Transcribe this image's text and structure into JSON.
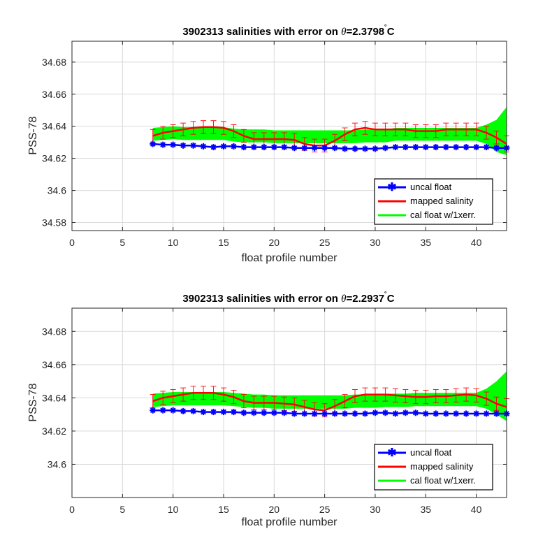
{
  "colors": {
    "uncal": "#0000ff",
    "mapped": "#ff0000",
    "calband": "#00ff00",
    "grid": "#d9d9d9",
    "axis": "#262626",
    "background": "#ffffff"
  },
  "chart_data": [
    {
      "type": "line",
      "title": "3902313 salinities with error on θ=2.3798˚C",
      "title_parts": {
        "prefix": "3902313 salinities with error on ",
        "theta": "θ",
        "value": "=2.3798",
        "degree": "˚",
        "unit": "C"
      },
      "xlabel": "float profile number",
      "ylabel": "PSS-78",
      "xlim": [
        0,
        43
      ],
      "ylim": [
        34.575,
        34.693
      ],
      "xticks": [
        0,
        5,
        10,
        15,
        20,
        25,
        30,
        35,
        40
      ],
      "yticks": [
        34.58,
        34.6,
        34.62,
        34.64,
        34.66,
        34.68
      ],
      "ytick_labels": [
        "34.58",
        "34.6",
        "34.62",
        "34.64",
        "34.66",
        "34.68"
      ],
      "grid": true,
      "legend_position": "bottom-right",
      "x": [
        8,
        9,
        10,
        11,
        12,
        13,
        14,
        15,
        16,
        17,
        18,
        19,
        20,
        21,
        22,
        23,
        24,
        25,
        26,
        27,
        28,
        29,
        30,
        31,
        32,
        33,
        34,
        35,
        36,
        37,
        38,
        39,
        40,
        41,
        42,
        43
      ],
      "series": [
        {
          "name": "uncal float",
          "color": "#0000ff",
          "marker": "asterisk",
          "values": [
            34.629,
            34.6285,
            34.6285,
            34.628,
            34.628,
            34.6275,
            34.627,
            34.6275,
            34.6275,
            34.627,
            34.627,
            34.627,
            34.627,
            34.627,
            34.6265,
            34.6265,
            34.6265,
            34.6265,
            34.6265,
            34.626,
            34.626,
            34.626,
            34.626,
            34.6265,
            34.627,
            34.627,
            34.627,
            34.627,
            34.627,
            34.627,
            34.627,
            34.627,
            34.627,
            34.627,
            34.6265,
            34.6265
          ]
        },
        {
          "name": "mapped salinity",
          "color": "#ff0000",
          "values": [
            34.634,
            34.636,
            34.637,
            34.638,
            34.639,
            34.6395,
            34.6395,
            34.639,
            34.637,
            34.634,
            34.632,
            34.632,
            34.632,
            34.632,
            34.6315,
            34.629,
            34.628,
            34.628,
            34.631,
            34.635,
            34.638,
            34.639,
            34.638,
            34.638,
            34.638,
            34.638,
            34.637,
            34.637,
            34.637,
            34.638,
            34.638,
            34.638,
            34.638,
            34.636,
            34.633,
            34.629
          ],
          "errors": [
            0.004,
            0.004,
            0.004,
            0.004,
            0.004,
            0.004,
            0.004,
            0.004,
            0.004,
            0.004,
            0.004,
            0.004,
            0.004,
            0.004,
            0.004,
            0.004,
            0.004,
            0.004,
            0.004,
            0.004,
            0.004,
            0.004,
            0.004,
            0.004,
            0.004,
            0.004,
            0.004,
            0.004,
            0.004,
            0.004,
            0.004,
            0.004,
            0.004,
            0.004,
            0.004,
            0.005
          ]
        },
        {
          "name": "cal float w/1xerr.",
          "color": "#00ff00",
          "center": [
            34.635,
            34.6355,
            34.636,
            34.6355,
            34.6355,
            34.6355,
            34.6355,
            34.6355,
            34.6345,
            34.634,
            34.634,
            34.634,
            34.6335,
            34.6335,
            34.6335,
            34.6335,
            34.6335,
            34.6335,
            34.6335,
            34.6335,
            34.6335,
            34.634,
            34.634,
            34.634,
            34.635,
            34.635,
            34.635,
            34.635,
            34.635,
            34.635,
            34.635,
            34.635,
            34.635,
            34.635,
            34.634,
            34.637
          ],
          "halfwidth": [
            0.004,
            0.004,
            0.004,
            0.004,
            0.004,
            0.004,
            0.004,
            0.004,
            0.004,
            0.004,
            0.004,
            0.004,
            0.004,
            0.004,
            0.004,
            0.004,
            0.004,
            0.004,
            0.004,
            0.004,
            0.004,
            0.004,
            0.004,
            0.004,
            0.004,
            0.004,
            0.004,
            0.004,
            0.004,
            0.004,
            0.004,
            0.004,
            0.004,
            0.006,
            0.01,
            0.015
          ]
        }
      ]
    },
    {
      "type": "line",
      "title": "3902313 salinities with error on θ=2.2937˚C",
      "title_parts": {
        "prefix": "3902313 salinities with error on ",
        "theta": "θ",
        "value": "=2.2937",
        "degree": "˚",
        "unit": "C"
      },
      "xlabel": "float profile number",
      "ylabel": "PSS-78",
      "xlim": [
        0,
        43
      ],
      "ylim": [
        34.58,
        34.694
      ],
      "xticks": [
        0,
        5,
        10,
        15,
        20,
        25,
        30,
        35,
        40
      ],
      "yticks": [
        34.6,
        34.62,
        34.64,
        34.66,
        34.68
      ],
      "ytick_labels": [
        "34.6",
        "34.62",
        "34.64",
        "34.66",
        "34.68"
      ],
      "grid": true,
      "legend_position": "bottom-right",
      "x": [
        8,
        9,
        10,
        11,
        12,
        13,
        14,
        15,
        16,
        17,
        18,
        19,
        20,
        21,
        22,
        23,
        24,
        25,
        26,
        27,
        28,
        29,
        30,
        31,
        32,
        33,
        34,
        35,
        36,
        37,
        38,
        39,
        40,
        41,
        42,
        43
      ],
      "series": [
        {
          "name": "uncal float",
          "color": "#0000ff",
          "marker": "asterisk",
          "values": [
            34.6325,
            34.6325,
            34.6325,
            34.632,
            34.632,
            34.6315,
            34.6315,
            34.6315,
            34.6315,
            34.631,
            34.631,
            34.631,
            34.631,
            34.631,
            34.6305,
            34.6305,
            34.6305,
            34.6305,
            34.6305,
            34.6305,
            34.6305,
            34.6305,
            34.631,
            34.631,
            34.6305,
            34.631,
            34.631,
            34.6305,
            34.6305,
            34.6305,
            34.6305,
            34.6305,
            34.6305,
            34.6305,
            34.6305,
            34.6305
          ]
        },
        {
          "name": "mapped salinity",
          "color": "#ff0000",
          "values": [
            34.638,
            34.64,
            34.641,
            34.642,
            34.643,
            34.643,
            34.643,
            34.642,
            34.6405,
            34.638,
            34.637,
            34.637,
            34.637,
            34.6365,
            34.636,
            34.6345,
            34.633,
            34.6325,
            34.635,
            34.638,
            34.641,
            34.642,
            34.642,
            34.642,
            34.6415,
            34.641,
            34.6405,
            34.6405,
            34.641,
            34.641,
            34.6415,
            34.642,
            34.6415,
            34.6395,
            34.6365,
            34.6345
          ],
          "errors": [
            0.004,
            0.004,
            0.004,
            0.004,
            0.004,
            0.004,
            0.004,
            0.004,
            0.004,
            0.004,
            0.004,
            0.004,
            0.004,
            0.004,
            0.004,
            0.004,
            0.004,
            0.004,
            0.004,
            0.004,
            0.004,
            0.004,
            0.004,
            0.004,
            0.004,
            0.004,
            0.004,
            0.004,
            0.004,
            0.004,
            0.004,
            0.004,
            0.004,
            0.004,
            0.004,
            0.005
          ]
        },
        {
          "name": "cal float w/1xerr.",
          "color": "#00ff00",
          "center": [
            34.6385,
            34.639,
            34.6395,
            34.6395,
            34.6395,
            34.6395,
            34.6395,
            34.6395,
            34.639,
            34.6385,
            34.638,
            34.638,
            34.6375,
            34.6375,
            34.6375,
            34.6375,
            34.6375,
            34.6375,
            34.6375,
            34.6375,
            34.638,
            34.638,
            34.638,
            34.6385,
            34.6385,
            34.6385,
            34.639,
            34.639,
            34.639,
            34.639,
            34.639,
            34.639,
            34.639,
            34.6395,
            34.64,
            34.641
          ],
          "halfwidth": [
            0.004,
            0.004,
            0.004,
            0.004,
            0.004,
            0.004,
            0.004,
            0.004,
            0.004,
            0.004,
            0.004,
            0.004,
            0.004,
            0.004,
            0.004,
            0.004,
            0.004,
            0.004,
            0.004,
            0.004,
            0.004,
            0.004,
            0.004,
            0.004,
            0.004,
            0.004,
            0.004,
            0.004,
            0.004,
            0.004,
            0.004,
            0.004,
            0.004,
            0.006,
            0.01,
            0.015
          ]
        }
      ]
    }
  ]
}
